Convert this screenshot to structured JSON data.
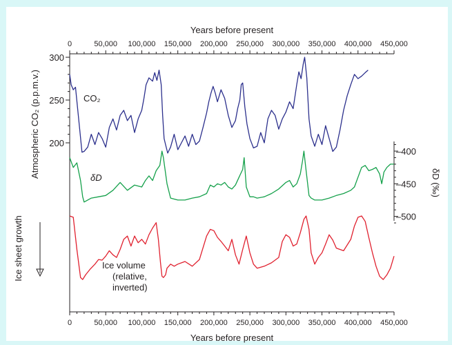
{
  "colors": {
    "background": "#d9f7f7",
    "panel": "#ffffff",
    "axis": "#231f20",
    "co2": "#2b2f8c",
    "deuterium": "#14a04a",
    "ice": "#e0202e"
  },
  "chart_data": {
    "type": "line",
    "x_axis": {
      "label_top": "Years before present",
      "label_bottom": "Years before present",
      "range": [
        0,
        450000
      ],
      "ticks": [
        0,
        50000,
        100000,
        150000,
        200000,
        250000,
        300000,
        350000,
        400000,
        450000
      ],
      "tick_labels": [
        "0",
        "50,000",
        "100,000",
        "150,000",
        "200,000",
        "250,000",
        "300,000",
        "350,000",
        "400,000",
        "450,000"
      ]
    },
    "left_axis": {
      "label": "Atmospheric CO₂ (p.p.m.v.)",
      "ticks": [
        200,
        250,
        300
      ],
      "tick_labels": [
        "200",
        "250",
        "300"
      ]
    },
    "right_axis": {
      "label": "δD (‰)",
      "ticks": [
        -400,
        -450,
        -500
      ],
      "tick_labels": [
        "–400",
        "–450",
        "–500"
      ]
    },
    "lower_left_label": "Ice sheet growth",
    "series": [
      {
        "name": "CO₂",
        "axis": "left",
        "x": [
          0,
          2000,
          5000,
          8000,
          11000,
          14000,
          17000,
          20000,
          25000,
          30000,
          35000,
          40000,
          45000,
          50000,
          55000,
          60000,
          65000,
          70000,
          75000,
          80000,
          85000,
          90000,
          95000,
          100000,
          103000,
          106000,
          110000,
          115000,
          118000,
          121000,
          124000,
          127000,
          129000,
          131000,
          133000,
          136000,
          140000,
          145000,
          150000,
          155000,
          160000,
          165000,
          170000,
          175000,
          180000,
          185000,
          190000,
          193000,
          196000,
          199000,
          202000,
          205000,
          210000,
          215000,
          220000,
          225000,
          230000,
          233000,
          236000,
          238000,
          240000,
          243000,
          246000,
          250000,
          255000,
          260000,
          265000,
          270000,
          275000,
          280000,
          285000,
          290000,
          295000,
          300000,
          305000,
          310000,
          315000,
          318000,
          321000,
          324000,
          326000,
          329000,
          332000,
          335000,
          340000,
          345000,
          350000,
          355000,
          360000,
          365000,
          370000,
          375000,
          380000,
          385000,
          390000,
          395000,
          400000,
          405000,
          410000,
          414000
        ],
        "y": [
          280,
          268,
          262,
          265,
          240,
          215,
          189,
          190,
          195,
          210,
          198,
          212,
          205,
          195,
          218,
          228,
          215,
          232,
          238,
          226,
          232,
          212,
          228,
          238,
          252,
          268,
          276,
          272,
          282,
          273,
          285,
          268,
          232,
          205,
          198,
          188,
          195,
          210,
          192,
          200,
          208,
          196,
          210,
          198,
          202,
          218,
          235,
          248,
          258,
          266,
          258,
          248,
          262,
          252,
          232,
          218,
          226,
          240,
          250,
          268,
          270,
          242,
          222,
          205,
          194,
          196,
          212,
          200,
          228,
          238,
          232,
          216,
          228,
          236,
          248,
          240,
          268,
          283,
          275,
          292,
          300,
          276,
          228,
          208,
          196,
          210,
          198,
          220,
          205,
          190,
          195,
          215,
          238,
          255,
          268,
          280,
          275,
          278,
          282,
          285
        ]
      },
      {
        "name": "δD",
        "axis": "right",
        "x": [
          0,
          5000,
          10000,
          15000,
          18000,
          20000,
          25000,
          30000,
          40000,
          50000,
          60000,
          70000,
          80000,
          90000,
          100000,
          105000,
          110000,
          115000,
          120000,
          125000,
          128000,
          130000,
          135000,
          140000,
          150000,
          160000,
          170000,
          180000,
          190000,
          195000,
          200000,
          205000,
          210000,
          215000,
          220000,
          225000,
          230000,
          235000,
          240000,
          242000,
          245000,
          250000,
          255000,
          260000,
          270000,
          280000,
          290000,
          300000,
          305000,
          310000,
          315000,
          320000,
          323000,
          325000,
          328000,
          332000,
          335000,
          340000,
          350000,
          360000,
          370000,
          380000,
          390000,
          395000,
          400000,
          405000,
          410000,
          415000,
          420000,
          425000,
          430000,
          433000,
          436000,
          440000,
          445000,
          450000
        ],
        "y": [
          -410,
          -425,
          -418,
          -445,
          -470,
          -478,
          -475,
          -472,
          -470,
          -468,
          -460,
          -448,
          -460,
          -452,
          -455,
          -445,
          -438,
          -445,
          -430,
          -422,
          -400,
          -410,
          -450,
          -472,
          -475,
          -475,
          -472,
          -470,
          -465,
          -452,
          -455,
          -450,
          -452,
          -448,
          -455,
          -458,
          -452,
          -440,
          -428,
          -410,
          -455,
          -470,
          -470,
          -472,
          -470,
          -465,
          -458,
          -448,
          -445,
          -455,
          -450,
          -435,
          -415,
          -400,
          -430,
          -468,
          -472,
          -475,
          -475,
          -472,
          -468,
          -465,
          -460,
          -455,
          -440,
          -425,
          -422,
          -430,
          -428,
          -425,
          -435,
          -450,
          -432,
          -425,
          -420,
          -420
        ]
      },
      {
        "name": "Ice volume (relative, inverted)",
        "axis": "none",
        "x": [
          0,
          5000,
          10000,
          15000,
          18000,
          22000,
          28000,
          35000,
          40000,
          45000,
          50000,
          55000,
          60000,
          65000,
          70000,
          75000,
          80000,
          85000,
          90000,
          95000,
          100000,
          105000,
          110000,
          115000,
          120000,
          123000,
          126000,
          128000,
          130000,
          133000,
          135000,
          140000,
          145000,
          150000,
          160000,
          170000,
          180000,
          190000,
          195000,
          200000,
          205000,
          210000,
          215000,
          220000,
          225000,
          230000,
          235000,
          240000,
          245000,
          250000,
          255000,
          260000,
          270000,
          280000,
          290000,
          295000,
          300000,
          305000,
          310000,
          315000,
          320000,
          325000,
          328000,
          332000,
          335000,
          340000,
          345000,
          350000,
          355000,
          360000,
          365000,
          370000,
          380000,
          390000,
          395000,
          400000,
          405000,
          410000,
          415000,
          420000,
          425000,
          430000,
          435000,
          440000,
          445000,
          450000
        ],
        "y": [
          0.0,
          0.02,
          0.5,
          0.92,
          0.95,
          0.88,
          0.8,
          0.72,
          0.65,
          0.66,
          0.6,
          0.52,
          0.58,
          0.62,
          0.5,
          0.35,
          0.3,
          0.45,
          0.3,
          0.4,
          0.35,
          0.42,
          0.28,
          0.18,
          0.1,
          0.35,
          0.7,
          0.9,
          0.92,
          0.88,
          0.78,
          0.72,
          0.75,
          0.72,
          0.68,
          0.75,
          0.65,
          0.3,
          0.2,
          0.22,
          0.32,
          0.38,
          0.45,
          0.52,
          0.35,
          0.58,
          0.72,
          0.5,
          0.3,
          0.55,
          0.72,
          0.78,
          0.75,
          0.7,
          0.62,
          0.38,
          0.28,
          0.32,
          0.45,
          0.42,
          0.25,
          0.05,
          0.0,
          0.2,
          0.55,
          0.72,
          0.62,
          0.55,
          0.42,
          0.28,
          0.36,
          0.48,
          0.52,
          0.35,
          0.15,
          0.02,
          0.0,
          0.08,
          0.32,
          0.55,
          0.75,
          0.9,
          0.95,
          0.88,
          0.78,
          0.6
        ]
      }
    ],
    "annotations": {
      "co2_label": "CO₂",
      "dd_label": "δD",
      "ice_label_line1": "Ice volume",
      "ice_label_line2": "(relative,",
      "ice_label_line3": "inverted)"
    }
  }
}
